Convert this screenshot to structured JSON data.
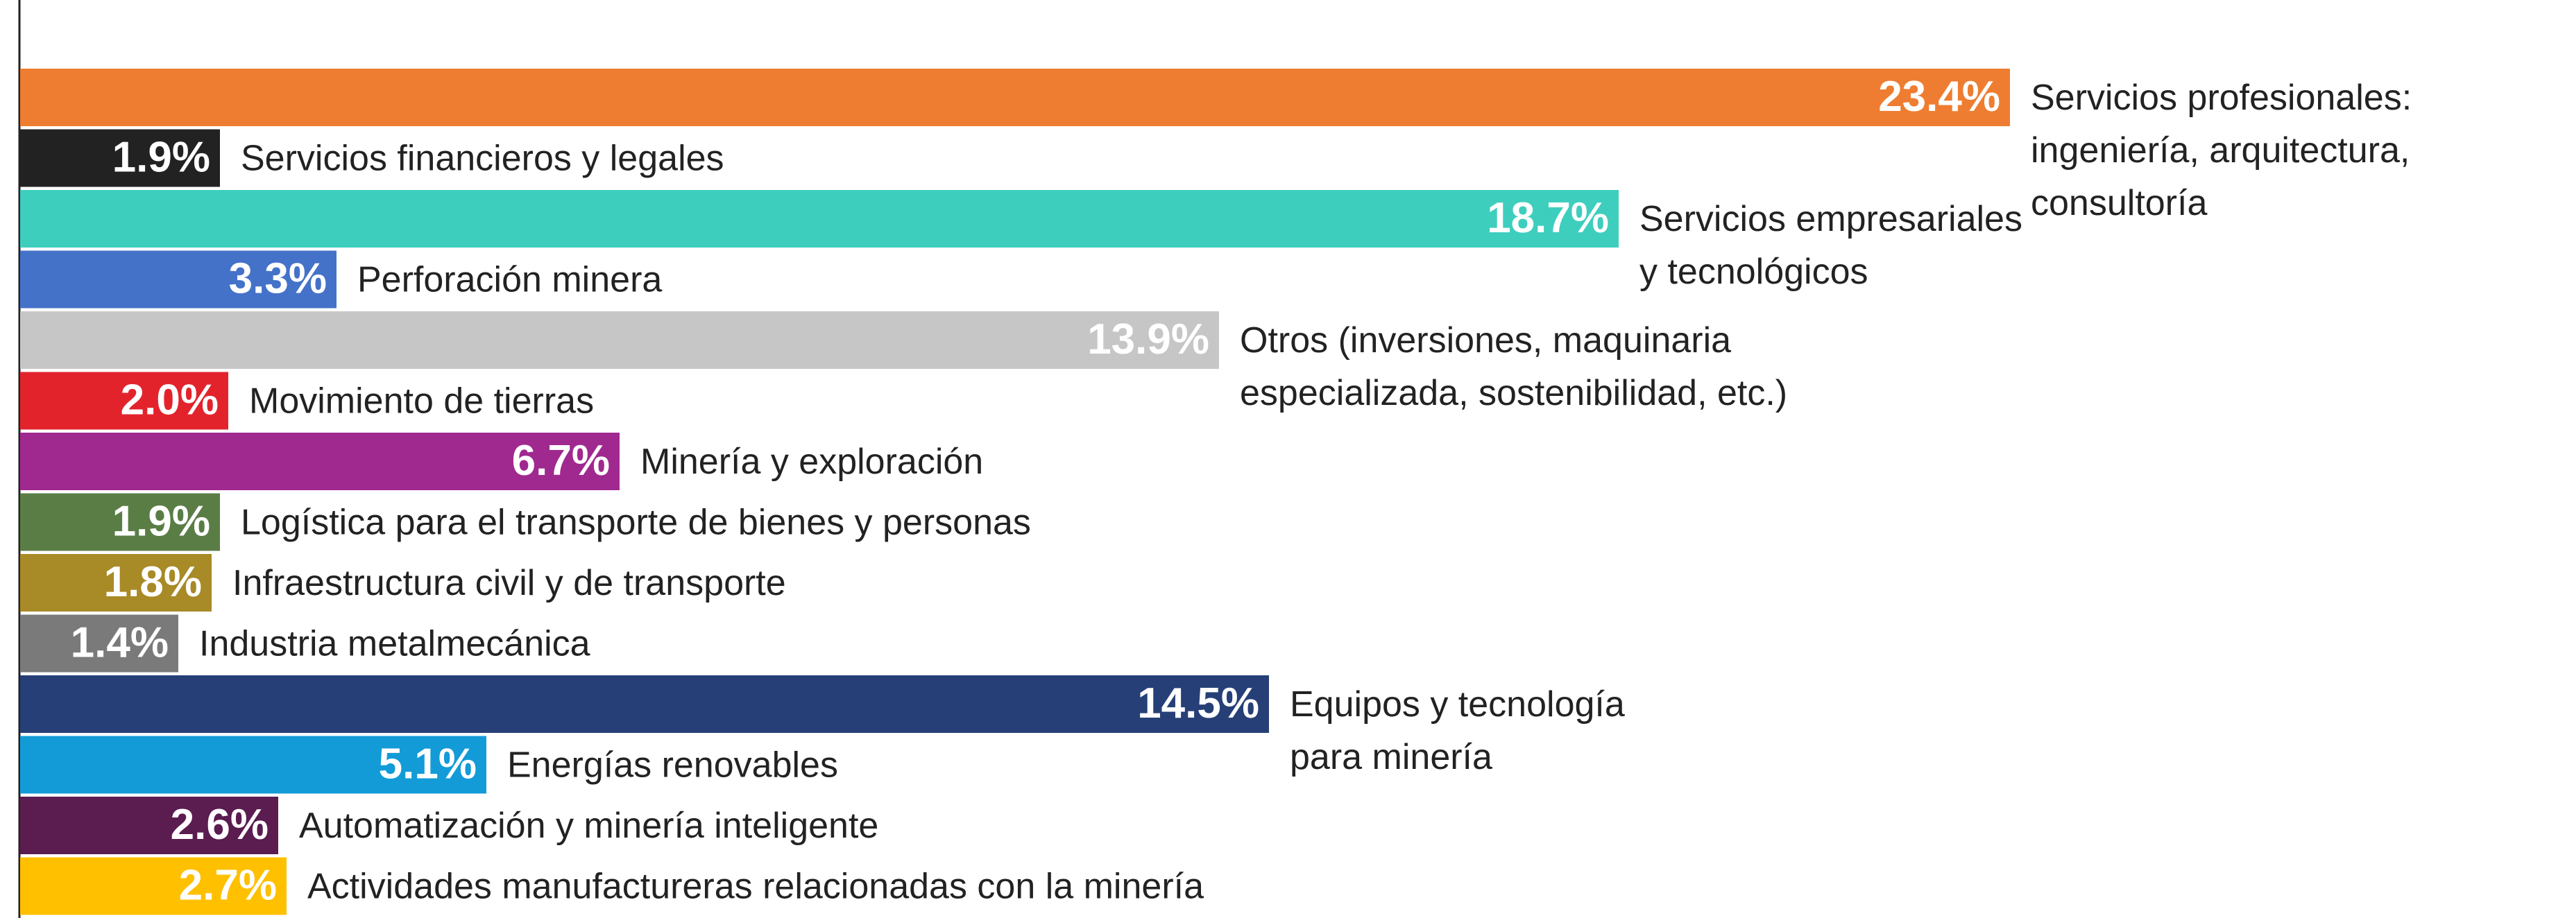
{
  "chart_data": {
    "type": "bar",
    "orientation": "horizontal",
    "categories": [
      [
        "Servicios profesionales:",
        "ingeniería, arquitectura,",
        "consultoría"
      ],
      [
        "Servicios financieros y legales"
      ],
      [
        "Servicios empresariales",
        "y tecnológicos"
      ],
      [
        "Perforación minera"
      ],
      [
        "Otros (inversiones, maquinaria",
        "especializada, sostenibilidad, etc.)"
      ],
      [
        "Movimiento de tierras"
      ],
      [
        "Minería y exploración"
      ],
      [
        "Logística para el transporte de bienes y personas"
      ],
      [
        "Infraestructura civil y de transporte"
      ],
      [
        "Industria metalmecánica"
      ],
      [
        "Equipos y tecnología",
        "para minería"
      ],
      [
        "Energías renovables"
      ],
      [
        "Automatización y minería inteligente"
      ],
      [
        "Actividades manufactureras relacionadas con la minería"
      ]
    ],
    "values": [
      23.4,
      1.9,
      18.7,
      3.3,
      13.9,
      2.0,
      6.7,
      1.9,
      1.8,
      1.4,
      14.5,
      5.1,
      2.6,
      2.7
    ],
    "value_labels": [
      "23.4%",
      "1.9%",
      "18.7%",
      "3.3%",
      "13.9%",
      "2.0%",
      "6.7%",
      "1.9%",
      "1.8%",
      "1.4%",
      "14.5%",
      "5.1%",
      "2.6%",
      "2.7%"
    ],
    "colors": [
      "#ee7d31",
      "#222222",
      "#3ecebe",
      "#4472c9",
      "#c6c6c6",
      "#e3232b",
      "#a0298f",
      "#5a7d45",
      "#a88a26",
      "#7a7a7a",
      "#263f77",
      "#139bd8",
      "#5b1c50",
      "#ffc000"
    ]
  }
}
